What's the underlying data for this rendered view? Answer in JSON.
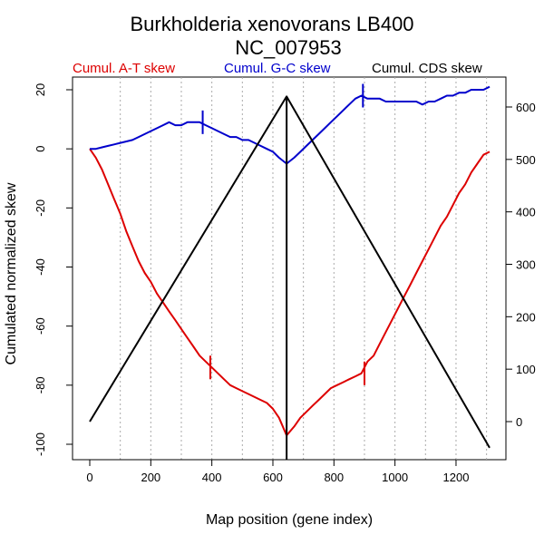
{
  "chart_data": {
    "type": "line",
    "title": "Burkholderia xenovorans LB400",
    "subtitle": "NC_007953",
    "xlabel": "Map position (gene index)",
    "ylabel": "Cumulated normalized skew",
    "xlim": [
      0,
      1320
    ],
    "ylim": [
      -100,
      20
    ],
    "y2lim": [
      0,
      600
    ],
    "x_ticks": [
      0,
      200,
      400,
      600,
      800,
      1000,
      1200
    ],
    "y_ticks": [
      20,
      0,
      -20,
      -40,
      -60,
      -80,
      -100
    ],
    "y2_ticks": [
      0,
      100,
      200,
      300,
      400,
      500,
      600
    ],
    "grid_x": [
      100,
      200,
      300,
      400,
      500,
      600,
      700,
      800,
      900,
      1000,
      1100,
      1200,
      1300
    ],
    "grid": "vertical dotted",
    "legend_position": "top",
    "series": [
      {
        "name": "Cumul. A-T skew",
        "color": "#dd0000",
        "axis": "left",
        "x": [
          0,
          20,
          40,
          60,
          80,
          100,
          120,
          140,
          160,
          180,
          200,
          220,
          240,
          260,
          280,
          300,
          320,
          340,
          360,
          380,
          400,
          420,
          440,
          460,
          480,
          500,
          520,
          540,
          560,
          580,
          600,
          620,
          645,
          670,
          690,
          710,
          730,
          750,
          770,
          790,
          810,
          830,
          850,
          870,
          890,
          910,
          930,
          950,
          970,
          990,
          1010,
          1030,
          1050,
          1070,
          1090,
          1110,
          1130,
          1150,
          1170,
          1190,
          1210,
          1230,
          1250,
          1270,
          1290,
          1310
        ],
        "values": [
          0,
          -3,
          -7,
          -12,
          -17,
          -22,
          -28,
          -33,
          -38,
          -42,
          -45,
          -49,
          -52,
          -55,
          -58,
          -61,
          -64,
          -67,
          -70,
          -72,
          -74,
          -76,
          -78,
          -80,
          -81,
          -82,
          -83,
          -84,
          -85,
          -86,
          -88,
          -91,
          -97,
          -94,
          -91,
          -89,
          -87,
          -85,
          -83,
          -81,
          -80,
          -79,
          -78,
          -77,
          -76,
          -72,
          -70,
          -66,
          -62,
          -58,
          -54,
          -50,
          -46,
          -42,
          -38,
          -34,
          -30,
          -26,
          -23,
          -19,
          -15,
          -12,
          -8,
          -5,
          -2,
          -1
        ]
      },
      {
        "name": "Cumul. G-C skew",
        "color": "#0000cc",
        "axis": "left",
        "x": [
          0,
          20,
          40,
          60,
          80,
          100,
          120,
          140,
          160,
          180,
          200,
          220,
          240,
          260,
          280,
          300,
          320,
          340,
          360,
          380,
          400,
          420,
          440,
          460,
          480,
          500,
          520,
          540,
          560,
          580,
          600,
          620,
          645,
          670,
          690,
          710,
          730,
          750,
          770,
          790,
          810,
          830,
          850,
          870,
          890,
          910,
          930,
          950,
          970,
          990,
          1010,
          1030,
          1050,
          1070,
          1090,
          1110,
          1130,
          1150,
          1170,
          1190,
          1210,
          1230,
          1250,
          1270,
          1290,
          1310
        ],
        "values": [
          0,
          0,
          0.5,
          1,
          1.5,
          2,
          2.5,
          3,
          4,
          5,
          6,
          7,
          8,
          9,
          8,
          8,
          9,
          9,
          9,
          8,
          7,
          6,
          5,
          4,
          4,
          3,
          3,
          2,
          1,
          0,
          -1,
          -3,
          -5,
          -3,
          -1,
          1,
          3,
          5,
          7,
          9,
          11,
          13,
          15,
          17,
          18,
          17,
          17,
          17,
          16,
          16,
          16,
          16,
          16,
          16,
          15,
          16,
          16,
          17,
          18,
          18,
          19,
          19,
          20,
          20,
          20,
          21
        ]
      },
      {
        "name": "Cumul. CDS skew",
        "color": "#000000",
        "axis": "right",
        "x": [
          0,
          645,
          645,
          1310
        ],
        "values": [
          0,
          620,
          620,
          -50
        ]
      }
    ],
    "markers": [
      {
        "series": "Cumul. A-T skew",
        "x": 395,
        "value": -74
      },
      {
        "series": "Cumul. A-T skew",
        "x": 900,
        "value": -76
      },
      {
        "series": "Cumul. G-C skew",
        "x": 370,
        "value": 9
      },
      {
        "series": "Cumul. G-C skew",
        "x": 895,
        "value": 18
      }
    ],
    "vertical_line_x": 645
  }
}
